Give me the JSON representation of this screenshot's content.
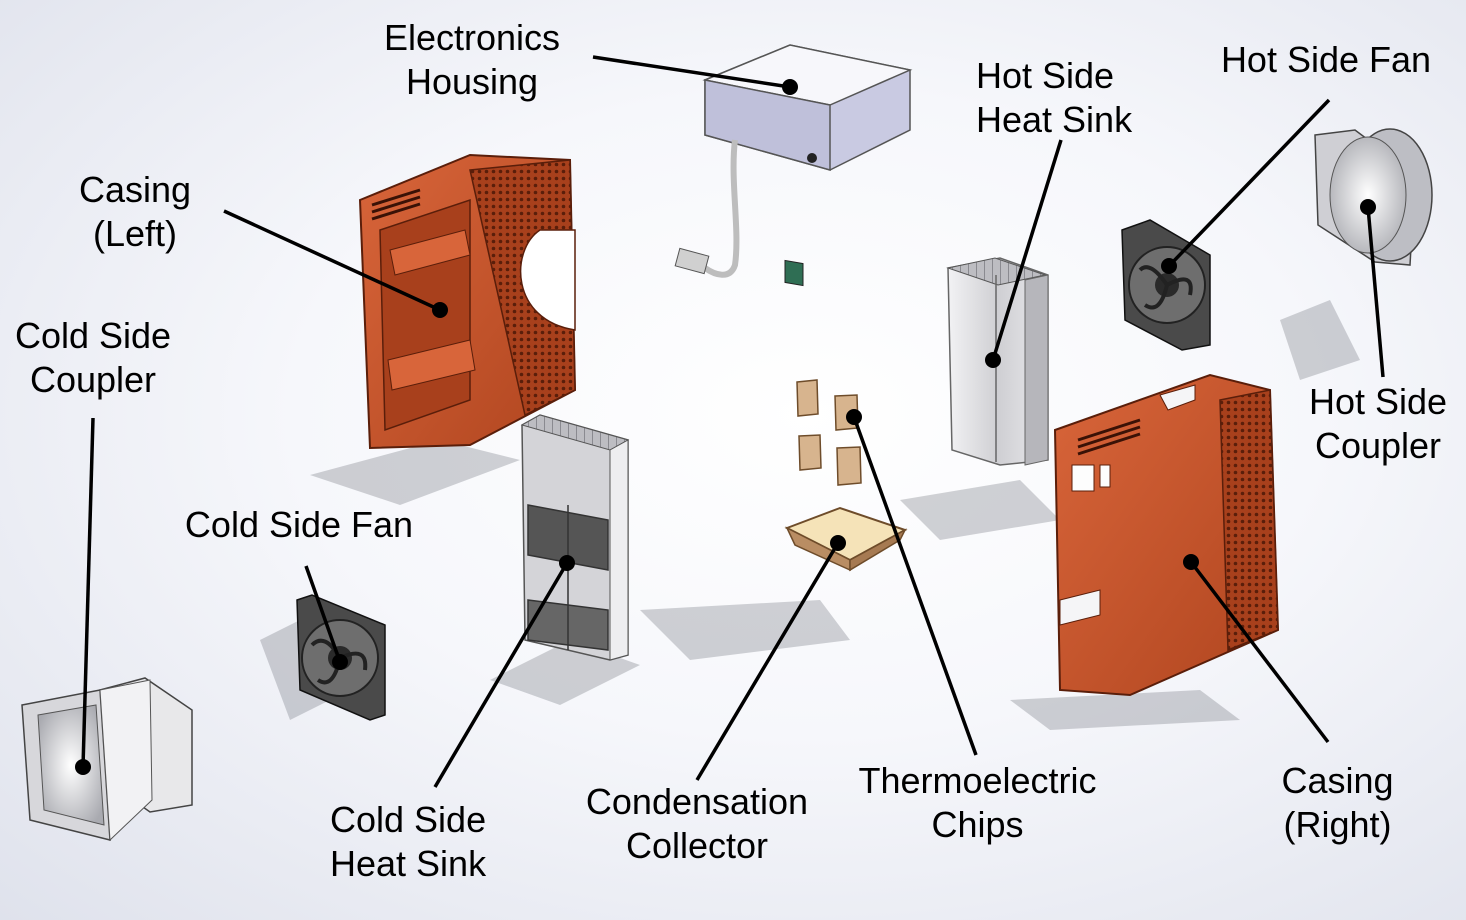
{
  "labels": {
    "electronics_housing": [
      "Electronics",
      "Housing"
    ],
    "hot_side_heat_sink": [
      "Hot Side",
      "Heat Sink"
    ],
    "hot_side_fan": [
      "Hot Side Fan"
    ],
    "casing_left": [
      "Casing",
      "(Left)"
    ],
    "cold_side_coupler": [
      "Cold Side",
      "Coupler"
    ],
    "hot_side_coupler": [
      "Hot Side",
      "Coupler"
    ],
    "cold_side_fan": [
      "Cold Side Fan"
    ],
    "cold_side_heat_sink": [
      "Cold Side",
      "Heat Sink"
    ],
    "condensation_collector": [
      "Condensation",
      "Collector"
    ],
    "thermoelectric_chips": [
      "Thermoelectric",
      "Chips"
    ],
    "casing_right": [
      "Casing",
      "(Right)"
    ]
  },
  "colors": {
    "casing": "#c4532c",
    "casing_dark": "#8a3418",
    "metal": "#d9d9dc",
    "fan": "#3a3a3a",
    "housing": "#cfd0e6",
    "chip": "#d7b48e",
    "leader": "#000000"
  }
}
